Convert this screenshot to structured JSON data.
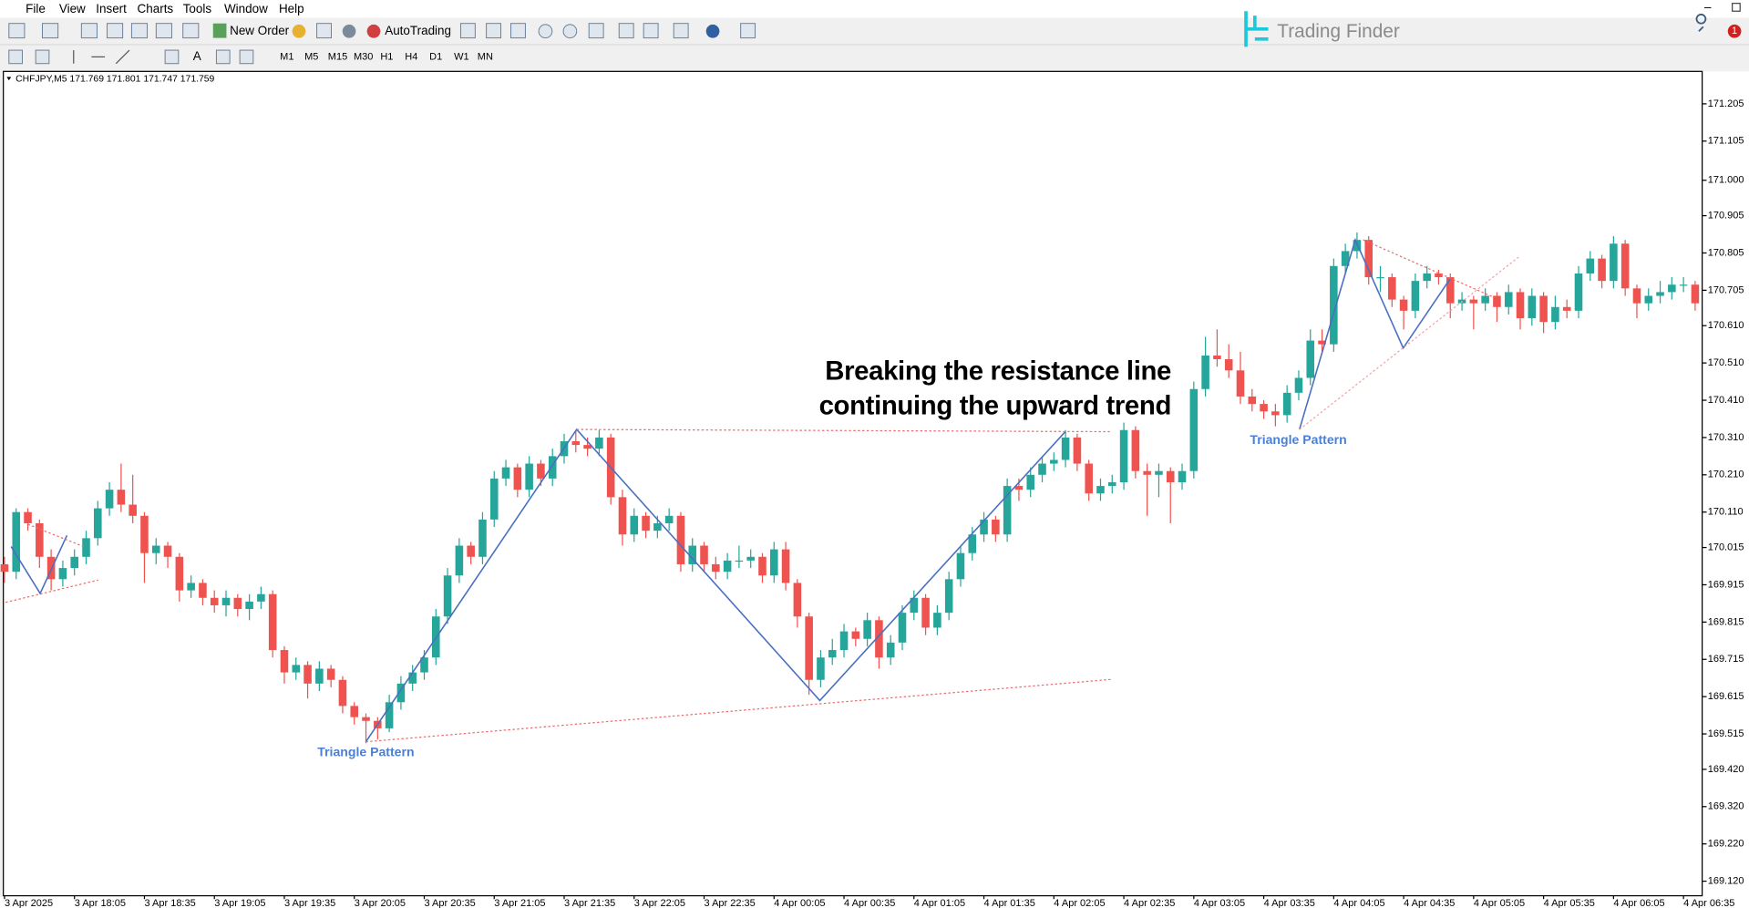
{
  "menu": [
    "File",
    "View",
    "Insert",
    "Charts",
    "Tools",
    "Window",
    "Help"
  ],
  "toolbar": {
    "new_order": "New Order",
    "auto_trading": "AutoTrading",
    "timeframes": [
      "M1",
      "M5",
      "M15",
      "M30",
      "H1",
      "H4",
      "D1",
      "W1",
      "MN"
    ],
    "badge": "1"
  },
  "logo": "Trading Finder",
  "chart_data": {
    "type": "candlestick",
    "title": "CHFJPY,M5  171.769 171.801 171.747 171.759",
    "annotation": [
      "Breaking the resistance line",
      "continuing the upward trend"
    ],
    "pattern_labels": [
      "Triangle Pattern",
      "Triangle Pattern"
    ],
    "up_color": "#26a69a",
    "down_color": "#ef5350",
    "grid": false,
    "xlim": [
      -0.1,
      145.6
    ],
    "xticks": [
      {
        "value": 0,
        "label": "3 Apr 2025"
      },
      {
        "value": 6,
        "label": "3 Apr 18:05"
      },
      {
        "value": 12,
        "label": "3 Apr 18:35"
      },
      {
        "value": 18,
        "label": "3 Apr 19:05"
      },
      {
        "value": 24,
        "label": "3 Apr 19:35"
      },
      {
        "value": 30,
        "label": "3 Apr 20:05"
      },
      {
        "value": 36,
        "label": "3 Apr 20:35"
      },
      {
        "value": 42,
        "label": "3 Apr 21:05"
      },
      {
        "value": 48,
        "label": "3 Apr 21:35"
      },
      {
        "value": 54,
        "label": "3 Apr 22:05"
      },
      {
        "value": 60,
        "label": "3 Apr 22:35"
      },
      {
        "value": 66,
        "label": "4 Apr 00:05"
      },
      {
        "value": 72,
        "label": "4 Apr 00:35"
      },
      {
        "value": 78,
        "label": "4 Apr 01:05"
      },
      {
        "value": 84,
        "label": "4 Apr 01:35"
      },
      {
        "value": 90,
        "label": "4 Apr 02:05"
      },
      {
        "value": 96,
        "label": "4 Apr 02:35"
      },
      {
        "value": 102,
        "label": "4 Apr 03:05"
      },
      {
        "value": 108,
        "label": "4 Apr 03:35"
      },
      {
        "value": 114,
        "label": "4 Apr 04:05"
      },
      {
        "value": 120,
        "label": "4 Apr 04:35"
      },
      {
        "value": 126,
        "label": "4 Apr 05:05"
      },
      {
        "value": 132,
        "label": "4 Apr 05:35"
      },
      {
        "value": 138,
        "label": "4 Apr 06:05"
      },
      {
        "value": 144,
        "label": "4 Apr 06:35"
      }
    ],
    "ylim": [
      169.081,
      171.292
    ],
    "yticks": [
      171.205,
      171.105,
      {
        "value": 171.0,
        "label": "171.000"
      },
      170.905,
      170.805,
      170.705,
      {
        "value": 170.61,
        "label": "170.610"
      },
      {
        "value": 170.51,
        "label": "170.510"
      },
      {
        "value": 170.41,
        "label": "170.410"
      },
      {
        "value": 170.31,
        "label": "170.310"
      },
      {
        "value": 170.21,
        "label": "170.210"
      },
      {
        "value": 170.11,
        "label": "170.110"
      },
      170.015,
      169.915,
      169.815,
      169.715,
      169.615,
      169.515,
      {
        "value": 169.42,
        "label": "169.420"
      },
      {
        "value": 169.32,
        "label": "169.320"
      },
      {
        "value": 169.22,
        "label": "169.220"
      },
      {
        "value": 169.12,
        "label": "169.120"
      }
    ],
    "candles": [
      [
        169.97,
        169.99,
        169.92,
        169.95
      ],
      [
        169.95,
        170.12,
        169.93,
        170.11
      ],
      [
        170.11,
        170.12,
        170.06,
        170.08
      ],
      [
        170.08,
        170.09,
        169.96,
        169.99
      ],
      [
        169.99,
        170.01,
        169.9,
        169.93
      ],
      [
        169.93,
        169.98,
        169.91,
        169.96
      ],
      [
        169.96,
        170.01,
        169.94,
        169.99
      ],
      [
        169.99,
        170.06,
        169.97,
        170.04
      ],
      [
        170.04,
        170.14,
        170.02,
        170.12
      ],
      [
        170.12,
        170.19,
        170.1,
        170.17
      ],
      [
        170.17,
        170.24,
        170.11,
        170.13
      ],
      [
        170.13,
        170.21,
        170.08,
        170.1
      ],
      [
        170.1,
        170.11,
        169.92,
        170.0
      ],
      [
        170.0,
        170.04,
        169.97,
        170.02
      ],
      [
        170.02,
        170.03,
        169.96,
        169.99
      ],
      [
        169.99,
        170.0,
        169.87,
        169.9
      ],
      [
        169.9,
        169.94,
        169.88,
        169.92
      ],
      [
        169.92,
        169.93,
        169.86,
        169.88
      ],
      [
        169.88,
        169.9,
        169.84,
        169.86
      ],
      [
        169.86,
        169.9,
        169.83,
        169.88
      ],
      [
        169.88,
        169.89,
        169.83,
        169.85
      ],
      [
        169.85,
        169.89,
        169.82,
        169.87
      ],
      [
        169.87,
        169.91,
        169.85,
        169.89
      ],
      [
        169.89,
        169.9,
        169.72,
        169.74
      ],
      [
        169.74,
        169.75,
        169.65,
        169.68
      ],
      [
        169.68,
        169.72,
        169.66,
        169.7
      ],
      [
        169.7,
        169.71,
        169.61,
        169.65
      ],
      [
        169.65,
        169.71,
        169.63,
        169.69
      ],
      [
        169.69,
        169.7,
        169.64,
        169.66
      ],
      [
        169.66,
        169.67,
        169.57,
        169.59
      ],
      [
        169.59,
        169.6,
        169.54,
        169.56
      ],
      [
        169.56,
        169.57,
        169.49,
        169.55
      ],
      [
        169.55,
        169.56,
        169.5,
        169.53
      ],
      [
        169.53,
        169.62,
        169.52,
        169.6
      ],
      [
        169.6,
        169.67,
        169.58,
        169.65
      ],
      [
        169.65,
        169.7,
        169.63,
        169.68
      ],
      [
        169.68,
        169.74,
        169.66,
        169.72
      ],
      [
        169.72,
        169.85,
        169.7,
        169.83
      ],
      [
        169.83,
        169.96,
        169.81,
        169.94
      ],
      [
        169.94,
        170.04,
        169.92,
        170.02
      ],
      [
        170.02,
        170.03,
        169.97,
        169.99
      ],
      [
        169.99,
        170.11,
        169.97,
        170.09
      ],
      [
        170.09,
        170.22,
        170.07,
        170.2
      ],
      [
        170.2,
        170.25,
        170.18,
        170.23
      ],
      [
        170.23,
        170.24,
        170.15,
        170.17
      ],
      [
        170.17,
        170.26,
        170.15,
        170.24
      ],
      [
        170.24,
        170.25,
        170.18,
        170.2
      ],
      [
        170.2,
        170.28,
        170.18,
        170.26
      ],
      [
        170.26,
        170.32,
        170.24,
        170.3
      ],
      [
        170.3,
        170.33,
        170.27,
        170.29
      ],
      [
        170.29,
        170.31,
        170.26,
        170.28
      ],
      [
        170.28,
        170.33,
        170.26,
        170.31
      ],
      [
        170.31,
        170.32,
        170.13,
        170.15
      ],
      [
        170.15,
        170.17,
        170.02,
        170.05
      ],
      [
        170.05,
        170.12,
        170.03,
        170.1
      ],
      [
        170.1,
        170.11,
        170.04,
        170.06
      ],
      [
        170.06,
        170.1,
        170.04,
        170.08
      ],
      [
        170.08,
        170.12,
        170.06,
        170.1
      ],
      [
        170.1,
        170.11,
        169.95,
        169.97
      ],
      [
        169.97,
        170.04,
        169.95,
        170.02
      ],
      [
        170.02,
        170.03,
        169.95,
        169.97
      ],
      [
        169.97,
        169.99,
        169.93,
        169.95
      ],
      [
        169.95,
        170.0,
        169.93,
        169.98
      ],
      [
        169.98,
        170.02,
        169.96,
        169.98
      ],
      [
        169.98,
        170.01,
        169.96,
        169.99
      ],
      [
        169.99,
        170.0,
        169.92,
        169.94
      ],
      [
        169.94,
        170.03,
        169.92,
        170.01
      ],
      [
        170.01,
        170.03,
        169.9,
        169.92
      ],
      [
        169.92,
        169.93,
        169.8,
        169.83
      ],
      [
        169.83,
        169.84,
        169.62,
        169.66
      ],
      [
        169.66,
        169.74,
        169.64,
        169.72
      ],
      [
        169.72,
        169.77,
        169.7,
        169.74
      ],
      [
        169.74,
        169.81,
        169.72,
        169.79
      ],
      [
        169.79,
        169.8,
        169.75,
        169.77
      ],
      [
        169.77,
        169.84,
        169.75,
        169.82
      ],
      [
        169.82,
        169.83,
        169.69,
        169.72
      ],
      [
        169.72,
        169.78,
        169.7,
        169.76
      ],
      [
        169.76,
        169.86,
        169.74,
        169.84
      ],
      [
        169.84,
        169.9,
        169.82,
        169.88
      ],
      [
        169.88,
        169.89,
        169.78,
        169.8
      ],
      [
        169.8,
        169.86,
        169.78,
        169.84
      ],
      [
        169.84,
        169.95,
        169.82,
        169.93
      ],
      [
        169.93,
        170.02,
        169.91,
        170.0
      ],
      [
        170.0,
        170.07,
        169.98,
        170.05
      ],
      [
        170.05,
        170.11,
        170.03,
        170.09
      ],
      [
        170.09,
        170.1,
        170.03,
        170.05
      ],
      [
        170.05,
        170.2,
        170.03,
        170.18
      ],
      [
        170.18,
        170.2,
        170.14,
        170.17
      ],
      [
        170.17,
        170.23,
        170.15,
        170.21
      ],
      [
        170.21,
        170.26,
        170.19,
        170.24
      ],
      [
        170.24,
        170.27,
        170.22,
        170.25
      ],
      [
        170.25,
        170.33,
        170.23,
        170.31
      ],
      [
        170.31,
        170.32,
        170.22,
        170.24
      ],
      [
        170.24,
        170.25,
        170.14,
        170.16
      ],
      [
        170.16,
        170.2,
        170.14,
        170.18
      ],
      [
        170.18,
        170.21,
        170.16,
        170.19
      ],
      [
        170.19,
        170.35,
        170.17,
        170.33
      ],
      [
        170.33,
        170.34,
        170.2,
        170.22
      ],
      [
        170.22,
        170.24,
        170.1,
        170.21
      ],
      [
        170.21,
        170.24,
        170.15,
        170.22
      ],
      [
        170.22,
        170.23,
        170.08,
        170.19
      ],
      [
        170.19,
        170.24,
        170.17,
        170.22
      ],
      [
        170.22,
        170.46,
        170.2,
        170.44
      ],
      [
        170.44,
        170.58,
        170.42,
        170.53
      ],
      [
        170.53,
        170.6,
        170.5,
        170.52
      ],
      [
        170.52,
        170.56,
        170.47,
        170.49
      ],
      [
        170.49,
        170.54,
        170.4,
        170.42
      ],
      [
        170.42,
        170.44,
        170.38,
        170.4
      ],
      [
        170.4,
        170.41,
        170.36,
        170.38
      ],
      [
        170.38,
        170.4,
        170.34,
        170.37
      ],
      [
        170.37,
        170.45,
        170.35,
        170.43
      ],
      [
        170.43,
        170.49,
        170.41,
        170.47
      ],
      [
        170.47,
        170.6,
        170.45,
        170.57
      ],
      [
        170.57,
        170.6,
        170.54,
        170.56
      ],
      [
        170.56,
        170.79,
        170.54,
        170.77
      ],
      [
        170.77,
        170.83,
        170.75,
        170.81
      ],
      [
        170.81,
        170.86,
        170.79,
        170.84
      ],
      [
        170.84,
        170.85,
        170.72,
        170.74
      ],
      [
        170.74,
        170.77,
        170.7,
        170.74
      ],
      [
        170.74,
        170.75,
        170.66,
        170.68
      ],
      [
        170.68,
        170.69,
        170.6,
        170.65
      ],
      [
        170.65,
        170.75,
        170.63,
        170.73
      ],
      [
        170.73,
        170.77,
        170.71,
        170.75
      ],
      [
        170.75,
        170.76,
        170.72,
        170.74
      ],
      [
        170.74,
        170.75,
        170.63,
        170.67
      ],
      [
        170.67,
        170.7,
        170.65,
        170.68
      ],
      [
        170.68,
        170.69,
        170.6,
        170.67
      ],
      [
        170.67,
        170.71,
        170.65,
        170.69
      ],
      [
        170.69,
        170.7,
        170.62,
        170.66
      ],
      [
        170.66,
        170.72,
        170.64,
        170.7
      ],
      [
        170.7,
        170.71,
        170.6,
        170.63
      ],
      [
        170.63,
        170.71,
        170.61,
        170.69
      ],
      [
        170.69,
        170.7,
        170.59,
        170.62
      ],
      [
        170.62,
        170.69,
        170.6,
        170.66
      ],
      [
        170.66,
        170.68,
        170.63,
        170.65
      ],
      [
        170.65,
        170.77,
        170.63,
        170.75
      ],
      [
        170.75,
        170.81,
        170.73,
        170.79
      ],
      [
        170.79,
        170.8,
        170.71,
        170.73
      ],
      [
        170.73,
        170.85,
        170.71,
        170.83
      ],
      [
        170.83,
        170.84,
        170.69,
        170.71
      ],
      [
        170.71,
        170.72,
        170.63,
        170.67
      ],
      [
        170.67,
        170.71,
        170.65,
        170.69
      ],
      [
        170.69,
        170.73,
        170.67,
        170.7
      ],
      [
        170.7,
        170.74,
        170.68,
        170.72
      ],
      [
        170.72,
        170.74,
        170.7,
        170.72
      ],
      [
        170.72,
        170.73,
        170.65,
        170.67
      ]
    ]
  }
}
